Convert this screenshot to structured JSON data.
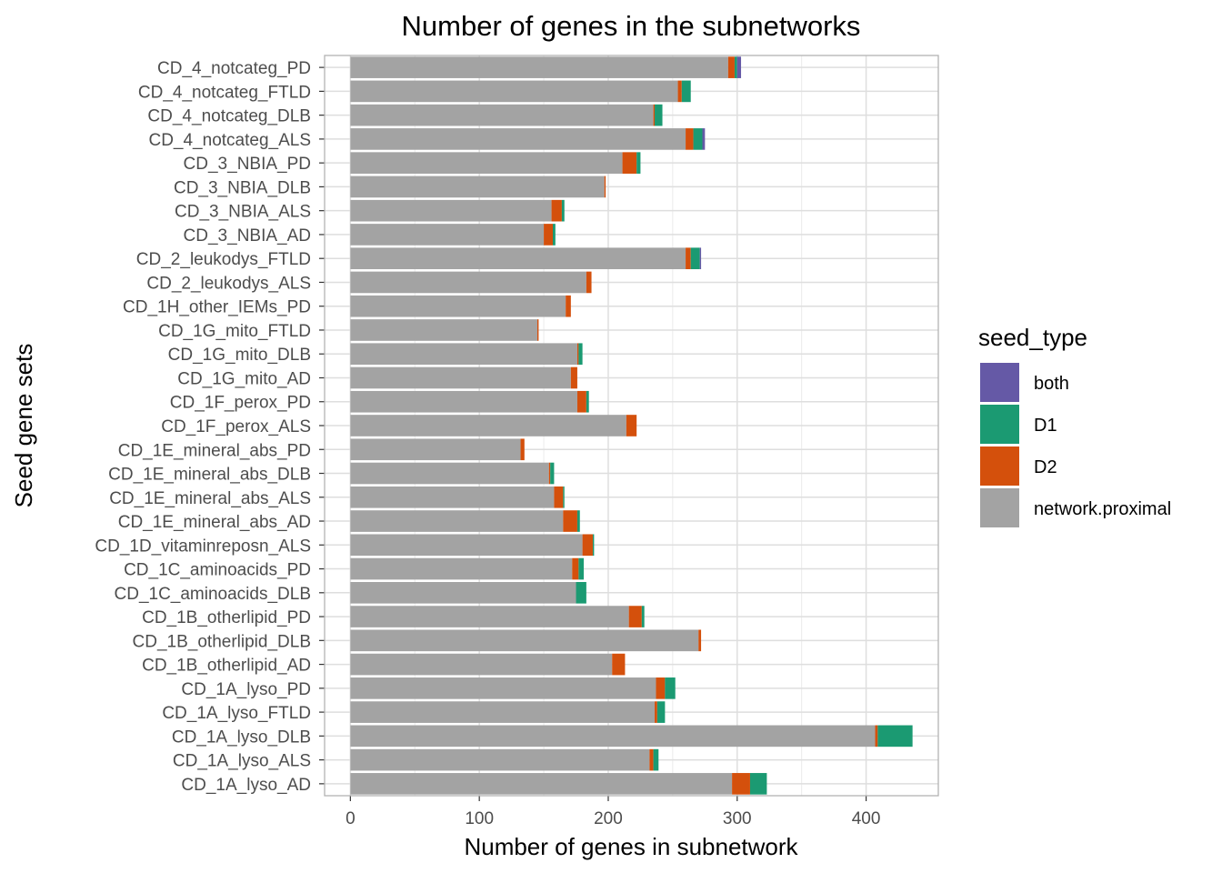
{
  "chart_data": {
    "type": "bar",
    "orientation": "horizontal",
    "stacked": true,
    "title": "Number of genes in the subnetworks",
    "xlabel": "Number of genes in subnetwork",
    "ylabel": "Seed gene sets",
    "xlim": [
      -20,
      456
    ],
    "xticks": [
      0,
      100,
      200,
      300,
      400
    ],
    "grid": true,
    "legend": {
      "title": "seed_type",
      "position": "right",
      "entries": [
        {
          "name": "both",
          "color": "#6559a6"
        },
        {
          "name": "D1",
          "color": "#1b9a72"
        },
        {
          "name": "D2",
          "color": "#d4500c"
        },
        {
          "name": "network.proximal",
          "color": "#a3a3a3"
        }
      ]
    },
    "categories": [
      "CD_4_notcateg_PD",
      "CD_4_notcateg_FTLD",
      "CD_4_notcateg_DLB",
      "CD_4_notcateg_ALS",
      "CD_3_NBIA_PD",
      "CD_3_NBIA_DLB",
      "CD_3_NBIA_ALS",
      "CD_3_NBIA_AD",
      "CD_2_leukodys_FTLD",
      "CD_2_leukodys_ALS",
      "CD_1H_other_IEMs_PD",
      "CD_1G_mito_FTLD",
      "CD_1G_mito_DLB",
      "CD_1G_mito_AD",
      "CD_1F_perox_PD",
      "CD_1F_perox_ALS",
      "CD_1E_mineral_abs_PD",
      "CD_1E_mineral_abs_DLB",
      "CD_1E_mineral_abs_ALS",
      "CD_1E_mineral_abs_AD",
      "CD_1D_vitaminreposn_ALS",
      "CD_1C_aminoacids_PD",
      "CD_1C_aminoacids_DLB",
      "CD_1B_otherlipid_PD",
      "CD_1B_otherlipid_DLB",
      "CD_1B_otherlipid_AD",
      "CD_1A_lyso_PD",
      "CD_1A_lyso_FTLD",
      "CD_1A_lyso_DLB",
      "CD_1A_lyso_ALS",
      "CD_1A_lyso_AD"
    ],
    "series": [
      {
        "name": "network.proximal",
        "color": "#a3a3a3",
        "values": [
          293,
          254,
          235,
          260,
          211,
          197,
          156,
          150,
          260,
          183,
          167,
          145,
          176,
          171,
          176,
          214,
          132,
          154,
          158,
          165,
          180,
          172,
          175,
          216,
          270,
          203,
          237,
          236,
          407,
          232,
          296
        ]
      },
      {
        "name": "D2",
        "color": "#d4500c",
        "values": [
          5,
          3,
          1,
          6,
          11,
          1,
          8,
          7,
          4,
          4,
          4,
          1,
          1,
          5,
          7,
          8,
          3,
          1,
          7,
          11,
          8,
          5,
          0,
          10,
          2,
          10,
          7,
          2,
          2,
          3,
          14
        ]
      },
      {
        "name": "D1",
        "color": "#1b9a72",
        "values": [
          2,
          7,
          6,
          7,
          3,
          0,
          2,
          2,
          7,
          0,
          0,
          0,
          3,
          0,
          2,
          0,
          0,
          3,
          1,
          2,
          1,
          4,
          8,
          2,
          0,
          0,
          8,
          6,
          27,
          4,
          13
        ]
      },
      {
        "name": "both",
        "color": "#6559a6",
        "values": [
          3,
          0,
          0,
          2,
          0,
          0,
          0,
          0,
          1,
          0,
          0,
          0,
          0,
          0,
          0,
          0,
          0,
          0,
          0,
          0,
          0,
          0,
          0,
          0,
          0,
          0,
          0,
          0,
          0,
          0,
          0
        ]
      }
    ]
  }
}
